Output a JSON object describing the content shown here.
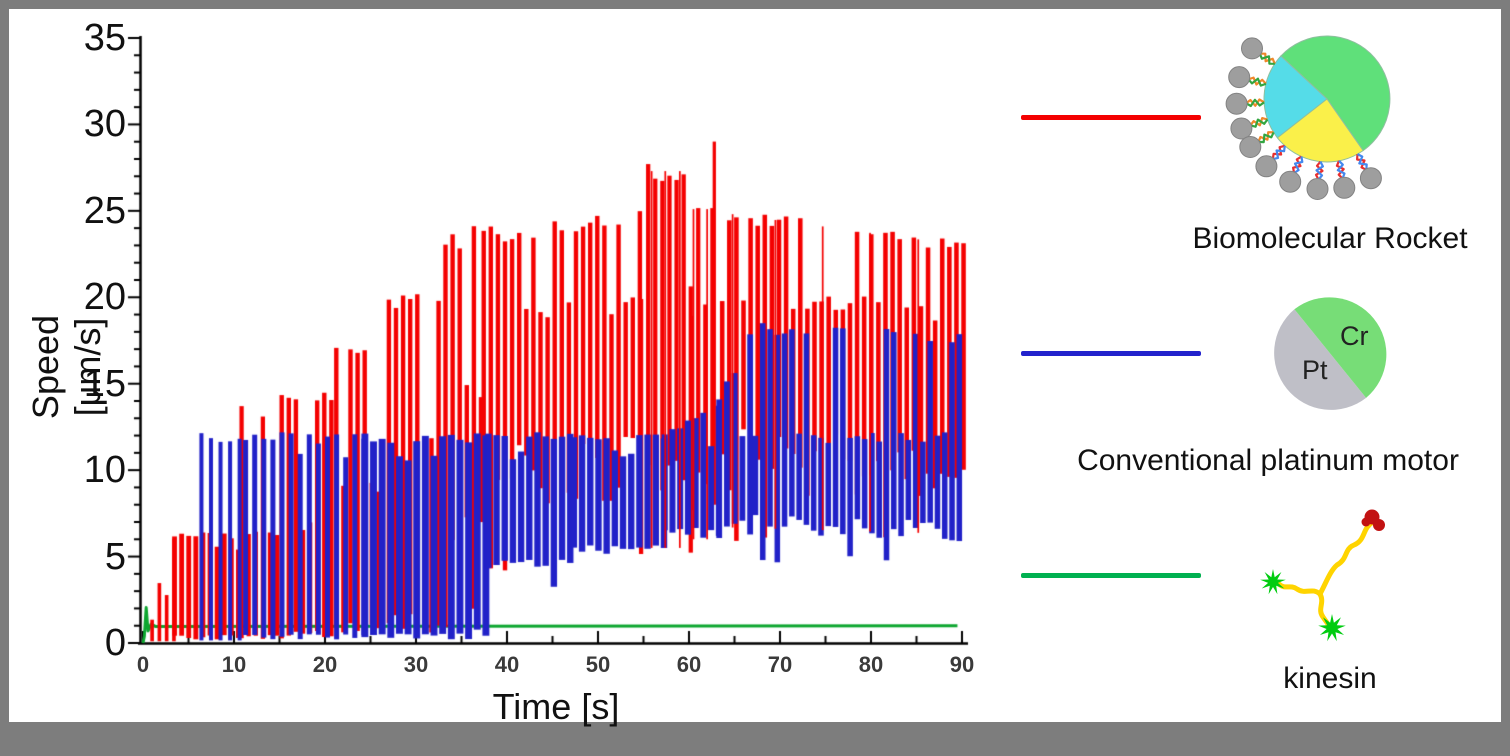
{
  "figure": {
    "background": "#ffffff",
    "frame_color": "#7d7d7d"
  },
  "chart_data": {
    "type": "line",
    "title": "",
    "xlabel": "Time [s]",
    "ylabel": "Speed [μm/s]",
    "xlim": [
      0,
      90
    ],
    "ylim": [
      0,
      35
    ],
    "x_ticks": [
      0,
      10,
      20,
      30,
      40,
      50,
      60,
      70,
      80,
      90
    ],
    "x_minor_step": 5,
    "y_ticks": [
      0,
      5,
      10,
      15,
      20,
      25,
      30,
      35
    ],
    "y_minor_step": 1,
    "grid": false,
    "legend_position": "right",
    "series": [
      {
        "name": "Biomolecular Rocket",
        "color": "#F40000",
        "style": "oscillating",
        "description": "Dense oscillation; upper envelope steps up from ~6 to ~28 (peak 30.2 at t=63) then declines to ~23.5; lower envelope near 0 until t~37 then ~7-8",
        "envelope": [
          {
            "t0": 0.8,
            "t1": 3.2,
            "dt": 0.8,
            "duty": 0.5,
            "lo": 0.1,
            "hi": 2.2,
            "hi1": 6.3,
            "fullP": 0.7
          },
          {
            "t0": 3.2,
            "t1": 10.6,
            "dt": 0.78,
            "duty": 0.68,
            "lo": 0.15,
            "hi": 6.4,
            "mid": 5.6,
            "fullP": 0.8,
            "bj": 0.05
          },
          {
            "t0": 10.6,
            "t1": 15,
            "dt": 0.78,
            "duty": 0.6,
            "lo": 0.15,
            "hi": 13.8,
            "mid": 6.8,
            "fullP": 0.55,
            "bj": 0.04
          },
          {
            "t0": 15,
            "t1": 21,
            "dt": 0.78,
            "duty": 0.62,
            "lo": 0.15,
            "hi": 14.5,
            "mid": 7.2,
            "fullP": 0.6,
            "bj": 0.05
          },
          {
            "t0": 21,
            "t1": 26,
            "dt": 0.78,
            "duty": 0.62,
            "lo": 0.2,
            "hi": 17.8,
            "mid": 9.5,
            "fullP": 0.6,
            "bj": 0.06
          },
          {
            "t0": 26,
            "t1": 33,
            "dt": 0.78,
            "duty": 0.62,
            "lo": 0.2,
            "hi": 20.3,
            "mid": 12,
            "fullP": 0.6,
            "bj": 0.08
          },
          {
            "t0": 33,
            "t1": 37.2,
            "dt": 0.78,
            "duty": 0.62,
            "lo": 0.3,
            "hi": 24.2,
            "mid": 15,
            "fullP": 0.58,
            "bj": 0.3
          },
          {
            "t0": 37.2,
            "t1": 45,
            "dt": 0.78,
            "duty": 0.62,
            "lo": 7,
            "hi": 24.2,
            "mid": 19.5,
            "fullP": 0.6,
            "dip": 4.5,
            "dipP": 0.12,
            "bj": 0.28
          },
          {
            "t0": 45,
            "t1": 54.5,
            "dt": 0.78,
            "duty": 0.62,
            "lo": 7,
            "hi": 24.5,
            "hi1": 25.3,
            "mid": 20,
            "fullP": 0.6,
            "dip": 4.5,
            "dipP": 0.1,
            "bj": 0.28
          },
          {
            "t0": 54.5,
            "t1": 60,
            "dt": 0.78,
            "duty": 0.6,
            "lo": 7,
            "hi": 27.8,
            "mid": 21,
            "fullP": 0.55,
            "dip": 5,
            "dipP": 0.1,
            "bj": 0.28
          },
          {
            "t0": 60,
            "t1": 62.6,
            "dt": 0.78,
            "duty": 0.6,
            "lo": 7.5,
            "hi": 25.6,
            "mid": 20,
            "fullP": 0.6,
            "bj": 0.25
          },
          {
            "t0": 62.6,
            "t1": 63.4,
            "dt": 0.8,
            "duty": 0.45,
            "lo": 8,
            "hi": 30.2,
            "fullP": 1
          },
          {
            "t0": 63.4,
            "t1": 90,
            "dt": 0.78,
            "duty": 0.64,
            "lo": 8.2,
            "lo1": 7.8,
            "hi": 25.4,
            "hi1": 23.5,
            "mid": 21,
            "mid1": 19.5,
            "fullP": 0.55,
            "dip": 6.5,
            "dipP": 0.08,
            "bj": 0.25
          }
        ]
      },
      {
        "name": "Conventional platinum motor",
        "color": "#2121C8",
        "style": "oscillating",
        "description": "Oscillates 0-12.2 from t=6 to t~37.5; floor rises to ~4-6 afterwards; upper peaks rise to ~18.5 after t~67",
        "envelope": [
          {
            "t0": 6.2,
            "t1": 11,
            "dt": 1.05,
            "duty": 0.42,
            "lo": 0.15,
            "hi": 12.2,
            "fullP": 0.95
          },
          {
            "t0": 11,
            "t1": 24,
            "dt": 1.0,
            "duty": 0.55,
            "lo": 0.15,
            "hi": 12.2,
            "mid": 11,
            "fullP": 0.85,
            "bj": 0.03
          },
          {
            "t0": 24,
            "t1": 37.6,
            "dt": 0.95,
            "duty": 0.8,
            "lo": 0.2,
            "hi": 12.2,
            "mid": 11.5,
            "fullP": 0.85,
            "bj": 0.05
          },
          {
            "t0": 37.6,
            "t1": 47,
            "dt": 0.9,
            "duty": 0.78,
            "lo": 4.2,
            "hi": 12.2,
            "mid": 11.3,
            "fullP": 0.8,
            "dip": 3.6,
            "dipP": 0.15,
            "bj": 0.1
          },
          {
            "t0": 47,
            "t1": 57,
            "dt": 0.9,
            "duty": 0.78,
            "lo": 5,
            "hi": 12.2,
            "mid": 11.3,
            "fullP": 0.8,
            "dip": 3.5,
            "dipP": 0.1,
            "bj": 0.1
          },
          {
            "t0": 57,
            "t1": 63,
            "dt": 0.85,
            "duty": 0.78,
            "lo": 6,
            "hi": 12.3,
            "hi1": 13.8,
            "mid": 11.5,
            "fullP": 0.7,
            "bj": 0.1
          },
          {
            "t0": 63,
            "t1": 67,
            "dt": 0.85,
            "duty": 0.75,
            "lo": 6,
            "hi": 14.5,
            "hi1": 18.5,
            "mid": 12,
            "fullP": 0.6,
            "bj": 0.1
          },
          {
            "t0": 67,
            "t1": 90,
            "dt": 0.8,
            "duty": 0.76,
            "lo": 6,
            "lo1": 5.6,
            "hi": 18.6,
            "hi1": 18,
            "mid": 12.2,
            "fullP": 0.5,
            "dip": 5,
            "dipP": 0.1,
            "bj": 0.12
          }
        ]
      },
      {
        "name": "kinesin",
        "color": "#0DA62F",
        "style": "line",
        "description": "Constant speed ~1 μm/s with brief initial transient to ~2",
        "points": [
          [
            0,
            0
          ],
          [
            0.15,
            0.4
          ],
          [
            0.35,
            2.05
          ],
          [
            0.55,
            0.7
          ],
          [
            0.9,
            1.1
          ],
          [
            1.4,
            0.95
          ],
          [
            89.5,
            1.0
          ]
        ]
      }
    ]
  },
  "legend": {
    "items": [
      {
        "label": "Biomolecular Rocket",
        "line_color": "#F40000",
        "icon": "biomolecular-rocket-icon"
      },
      {
        "label": "Conventional platinum motor",
        "line_color": "#2222CC",
        "icon": "pt-cr-motor-icon",
        "cr_label": "Cr",
        "pt_label": "Pt"
      },
      {
        "label": "kinesin",
        "line_color": "#00B050",
        "icon": "kinesin-icon"
      }
    ]
  }
}
